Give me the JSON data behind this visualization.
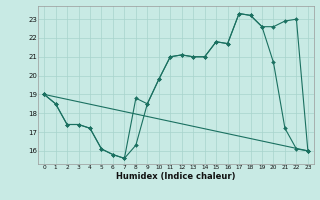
{
  "bg_color": "#c8eae4",
  "grid_color": "#a8d4cc",
  "line_color": "#1a7060",
  "xlim": [
    -0.5,
    23.5
  ],
  "ylim": [
    15.3,
    23.7
  ],
  "xticks": [
    0,
    1,
    2,
    3,
    4,
    5,
    6,
    7,
    8,
    9,
    10,
    11,
    12,
    13,
    14,
    15,
    16,
    17,
    18,
    19,
    20,
    21,
    22,
    23
  ],
  "yticks": [
    16,
    17,
    18,
    19,
    20,
    21,
    22,
    23
  ],
  "xlabel": "Humidex (Indice chaleur)",
  "line1_x": [
    0,
    1,
    2,
    3,
    4,
    5,
    6,
    7,
    8,
    9,
    10,
    11,
    12,
    13,
    14,
    15,
    16,
    17,
    18,
    19,
    20,
    21,
    22,
    23
  ],
  "line1_y": [
    19.0,
    18.5,
    17.4,
    17.4,
    17.2,
    16.1,
    15.8,
    15.6,
    16.3,
    18.5,
    19.8,
    21.0,
    21.1,
    21.0,
    21.0,
    21.8,
    21.7,
    23.3,
    23.2,
    22.6,
    20.7,
    17.2,
    16.1,
    16.0
  ],
  "line2_x": [
    0,
    1,
    2,
    3,
    4,
    5,
    6,
    7,
    8,
    9,
    10,
    11,
    12,
    13,
    14,
    15,
    16,
    17,
    18,
    19,
    20,
    21,
    22,
    23
  ],
  "line2_y": [
    19.0,
    18.5,
    17.4,
    17.4,
    17.2,
    16.1,
    15.8,
    15.6,
    18.8,
    18.5,
    19.8,
    21.0,
    21.1,
    21.0,
    21.0,
    21.8,
    21.7,
    23.3,
    23.2,
    22.6,
    22.6,
    22.9,
    23.0,
    16.0
  ],
  "line3_x": [
    0,
    23
  ],
  "line3_y": [
    19.0,
    16.0
  ]
}
